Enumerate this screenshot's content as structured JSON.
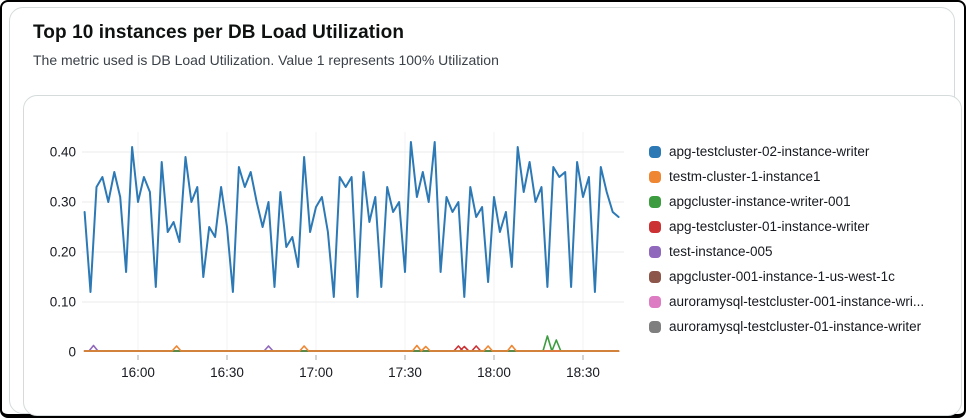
{
  "header": {
    "title": "Top 10 instances per DB Load Utilization",
    "subtitle": "The metric used is DB Load Utilization. Value 1 represents 100% Utilization"
  },
  "chart_data": {
    "type": "line",
    "title": "Top 10 instances per DB Load Utilization",
    "xlabel": "",
    "ylabel": "",
    "grid": true,
    "legend_position": "right",
    "x_axis": {
      "start_min": 942,
      "end_min": 1122,
      "ticks": [
        {
          "label": "16:00",
          "t": 960
        },
        {
          "label": "16:30",
          "t": 990
        },
        {
          "label": "17:00",
          "t": 1020
        },
        {
          "label": "17:30",
          "t": 1050
        },
        {
          "label": "18:00",
          "t": 1080
        },
        {
          "label": "18:30",
          "t": 1110
        }
      ]
    },
    "y_axis": {
      "ylim": [
        0,
        0.44
      ],
      "ticks": [
        {
          "label": "0.40",
          "v": 0.4
        },
        {
          "label": "0.30",
          "v": 0.3
        },
        {
          "label": "0.20",
          "v": 0.2
        },
        {
          "label": "0.10",
          "v": 0.1
        },
        {
          "label": "0",
          "v": 0
        }
      ]
    },
    "series": [
      {
        "name": "apg-testcluster-02-instance-writer",
        "color": "#2d79b5",
        "t_start": 942,
        "t_step": 2,
        "values": [
          0.28,
          0.12,
          0.33,
          0.35,
          0.3,
          0.36,
          0.31,
          0.16,
          0.41,
          0.3,
          0.35,
          0.32,
          0.13,
          0.38,
          0.24,
          0.26,
          0.22,
          0.39,
          0.3,
          0.33,
          0.15,
          0.25,
          0.23,
          0.33,
          0.25,
          0.12,
          0.37,
          0.33,
          0.36,
          0.3,
          0.25,
          0.3,
          0.13,
          0.32,
          0.21,
          0.23,
          0.17,
          0.39,
          0.24,
          0.29,
          0.31,
          0.24,
          0.11,
          0.35,
          0.33,
          0.35,
          0.11,
          0.36,
          0.26,
          0.31,
          0.13,
          0.33,
          0.28,
          0.3,
          0.16,
          0.42,
          0.31,
          0.36,
          0.3,
          0.42,
          0.16,
          0.31,
          0.28,
          0.3,
          0.11,
          0.33,
          0.27,
          0.29,
          0.14,
          0.31,
          0.24,
          0.28,
          0.17,
          0.41,
          0.32,
          0.38,
          0.3,
          0.33,
          0.13,
          0.37,
          0.35,
          0.36,
          0.13,
          0.38,
          0.31,
          0.35,
          0.12,
          0.37,
          0.32,
          0.28,
          0.27
        ]
      },
      {
        "name": "testm-cluster-1-instance1",
        "color": "#ef8633",
        "baseline": 0.002,
        "spikes": [
          {
            "t": 973,
            "v": 0.012
          },
          {
            "t": 1016,
            "v": 0.012
          },
          {
            "t": 1054,
            "v": 0.013
          },
          {
            "t": 1057,
            "v": 0.011
          },
          {
            "t": 1078,
            "v": 0.012
          },
          {
            "t": 1086,
            "v": 0.013
          }
        ]
      },
      {
        "name": "apgcluster-instance-writer-001",
        "color": "#3d9c40",
        "baseline": 0.002,
        "spikes": [
          {
            "t": 1098,
            "v": 0.032
          },
          {
            "t": 1101,
            "v": 0.024
          }
        ]
      },
      {
        "name": "apg-testcluster-01-instance-writer",
        "color": "#cc3234",
        "baseline": 0.002,
        "spikes": [
          {
            "t": 1068,
            "v": 0.012
          },
          {
            "t": 1070,
            "v": 0.011
          },
          {
            "t": 1074,
            "v": 0.012
          }
        ]
      },
      {
        "name": "test-instance-005",
        "color": "#9069bd",
        "baseline": 0.002,
        "spikes": [
          {
            "t": 945,
            "v": 0.013
          },
          {
            "t": 1004,
            "v": 0.012
          }
        ]
      },
      {
        "name": "apgcluster-001-instance-1-us-west-1c",
        "color": "#8c564b",
        "baseline": 0.002,
        "spikes": []
      },
      {
        "name": "auroramysql-testcluster-001-instance-wri...",
        "color": "#de7cc3",
        "baseline": 0.002,
        "spikes": []
      },
      {
        "name": "auroramysql-testcluster-01-instance-writer",
        "color": "#7f7f7f",
        "baseline": 0.002,
        "spikes": []
      }
    ]
  }
}
